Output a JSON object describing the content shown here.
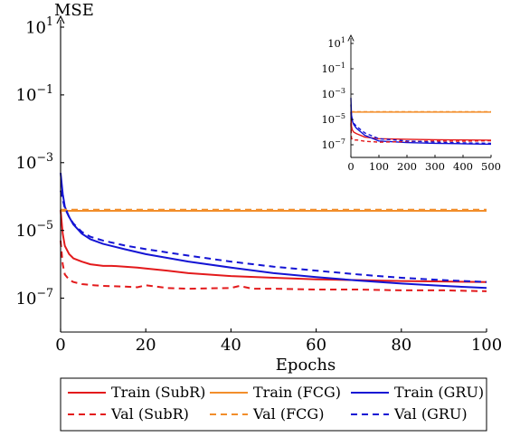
{
  "chart_data": [
    {
      "type": "line",
      "xlabel": "Epochs",
      "ylabel": "MSE",
      "yscale": "log",
      "xlim": [
        0,
        100
      ],
      "ylim": [
        1e-08,
        10
      ],
      "xticks": [
        0,
        20,
        40,
        60,
        80,
        100
      ],
      "xtick_labels": [
        "0",
        "20",
        "40",
        "60",
        "80",
        "100"
      ],
      "yticks": [
        1e-07,
        1e-05,
        0.001,
        0.1,
        10
      ],
      "ytick_labels": [
        {
          "base": "10",
          "exp": "−7"
        },
        {
          "base": "10",
          "exp": "−5"
        },
        {
          "base": "10",
          "exp": "−3"
        },
        {
          "base": "10",
          "exp": "−1"
        },
        {
          "base": "10",
          "exp": "1"
        }
      ],
      "grid": false,
      "legend_position": "bottom",
      "series": [
        {
          "name": "Train (SubR)",
          "color": "#e31a1c",
          "dash": false,
          "x": [
            0,
            0.5,
            1,
            2,
            3,
            5,
            7,
            10,
            12,
            15,
            18,
            20,
            25,
            30,
            40,
            50,
            60,
            70,
            80,
            90,
            100
          ],
          "y": [
            4e-05,
            8e-06,
            3.5e-06,
            2e-06,
            1.5e-06,
            1.2e-06,
            1e-06,
            9e-07,
            9e-07,
            8.5e-07,
            8e-07,
            7.5e-07,
            6.5e-07,
            5.5e-07,
            4.5e-07,
            4e-07,
            3.6e-07,
            3.4e-07,
            3.2e-07,
            3.1e-07,
            3e-07
          ]
        },
        {
          "name": "Train (FCG)",
          "color": "#f28e2b",
          "dash": false,
          "x": [
            0,
            100
          ],
          "y": [
            3.8e-05,
            3.8e-05
          ]
        },
        {
          "name": "Train (GRU)",
          "color": "#1414d4",
          "dash": false,
          "x": [
            0,
            0.5,
            1,
            2,
            3,
            5,
            7,
            10,
            15,
            20,
            30,
            40,
            50,
            60,
            70,
            80,
            90,
            100
          ],
          "y": [
            0.0005,
            0.00012,
            5e-05,
            2.5e-05,
            1.5e-05,
            8e-06,
            5.5e-06,
            4e-06,
            2.8e-06,
            2e-06,
            1.2e-06,
            8e-07,
            5.5e-07,
            4.2e-07,
            3.3e-07,
            2.7e-07,
            2.3e-07,
            2e-07
          ]
        },
        {
          "name": "Val (SubR)",
          "color": "#e31a1c",
          "dash": true,
          "x": [
            0,
            0.5,
            1,
            2,
            3,
            5,
            8,
            10,
            15,
            18,
            20,
            25,
            30,
            40,
            42,
            45,
            50,
            60,
            70,
            80,
            90,
            100
          ],
          "y": [
            5e-06,
            1e-06,
            5e-07,
            3.5e-07,
            3e-07,
            2.6e-07,
            2.4e-07,
            2.3e-07,
            2.2e-07,
            2.1e-07,
            2.4e-07,
            2e-07,
            1.9e-07,
            2e-07,
            2.3e-07,
            1.9e-07,
            1.9e-07,
            1.8e-07,
            1.8e-07,
            1.7e-07,
            1.7e-07,
            1.6e-07
          ]
        },
        {
          "name": "Val (FCG)",
          "color": "#f28e2b",
          "dash": true,
          "x": [
            0,
            100
          ],
          "y": [
            4.1e-05,
            4.1e-05
          ]
        },
        {
          "name": "Val (GRU)",
          "color": "#1414d4",
          "dash": true,
          "x": [
            0,
            0.5,
            1,
            2,
            3,
            5,
            7,
            10,
            15,
            20,
            30,
            40,
            50,
            60,
            70,
            80,
            90,
            100
          ],
          "y": [
            0.00015,
            8e-05,
            4.5e-05,
            2.5e-05,
            1.6e-05,
            9e-06,
            6.5e-06,
            5e-06,
            3.6e-06,
            2.8e-06,
            1.8e-06,
            1.2e-06,
            8.5e-07,
            6.5e-07,
            5e-07,
            4e-07,
            3.4e-07,
            3e-07
          ]
        }
      ]
    },
    {
      "type": "line",
      "role": "inset",
      "xlabel": "",
      "ylabel": "",
      "yscale": "log",
      "xlim": [
        0,
        500
      ],
      "ylim": [
        1e-08,
        10
      ],
      "xticks": [
        0,
        100,
        200,
        300,
        400,
        500
      ],
      "xtick_labels": [
        "0",
        "100",
        "200",
        "300",
        "400",
        "500"
      ],
      "yticks": [
        1e-07,
        1e-05,
        0.001,
        0.1,
        10
      ],
      "ytick_labels": [
        {
          "base": "10",
          "exp": "−7"
        },
        {
          "base": "10",
          "exp": "−5"
        },
        {
          "base": "10",
          "exp": "−3"
        },
        {
          "base": "10",
          "exp": "−1"
        },
        {
          "base": "10",
          "exp": "1"
        }
      ],
      "grid": false,
      "series": [
        {
          "color": "#e31a1c",
          "dash": false,
          "x": [
            0,
            2,
            5,
            10,
            20,
            50,
            100,
            200,
            300,
            400,
            500
          ],
          "y": [
            4e-05,
            3e-06,
            1.5e-06,
            1e-06,
            7.5e-07,
            4e-07,
            3e-07,
            2.7e-07,
            2.5e-07,
            2.4e-07,
            2.3e-07
          ]
        },
        {
          "color": "#f28e2b",
          "dash": false,
          "x": [
            0,
            500
          ],
          "y": [
            3.8e-05,
            3.8e-05
          ]
        },
        {
          "color": "#1414d4",
          "dash": false,
          "x": [
            0,
            2,
            5,
            10,
            20,
            50,
            100,
            200,
            300,
            400,
            500
          ],
          "y": [
            0.0005,
            2.5e-05,
            8e-06,
            4e-06,
            2e-06,
            5.5e-07,
            2e-07,
            1.5e-07,
            1.3e-07,
            1.2e-07,
            1.1e-07
          ]
        },
        {
          "color": "#e31a1c",
          "dash": true,
          "x": [
            0,
            2,
            5,
            10,
            20,
            50,
            100,
            200,
            300,
            400,
            500
          ],
          "y": [
            5e-06,
            3.5e-07,
            2.6e-07,
            2.3e-07,
            2.4e-07,
            1.9e-07,
            1.6e-07,
            1.8e-07,
            2e-07,
            1.9e-07,
            2.1e-07
          ]
        },
        {
          "color": "#f28e2b",
          "dash": true,
          "x": [
            0,
            500
          ],
          "y": [
            4.1e-05,
            4.1e-05
          ]
        },
        {
          "color": "#1414d4",
          "dash": true,
          "x": [
            0,
            2,
            5,
            10,
            20,
            50,
            100,
            200,
            300,
            400,
            500
          ],
          "y": [
            0.00015,
            2.5e-05,
            9e-06,
            5e-06,
            2.8e-06,
            8.5e-07,
            3e-07,
            2e-07,
            1.6e-07,
            1.4e-07,
            1.3e-07
          ]
        }
      ]
    }
  ],
  "legend": {
    "items": [
      {
        "label": "Train (SubR)",
        "color": "#e31a1c",
        "dash": false
      },
      {
        "label": "Train (FCG)",
        "color": "#f28e2b",
        "dash": false
      },
      {
        "label": "Train (GRU)",
        "color": "#1414d4",
        "dash": false
      },
      {
        "label": "Val (SubR)",
        "color": "#e31a1c",
        "dash": true
      },
      {
        "label": "Val (FCG)",
        "color": "#f28e2b",
        "dash": true
      },
      {
        "label": "Val (GRU)",
        "color": "#1414d4",
        "dash": true
      }
    ]
  }
}
